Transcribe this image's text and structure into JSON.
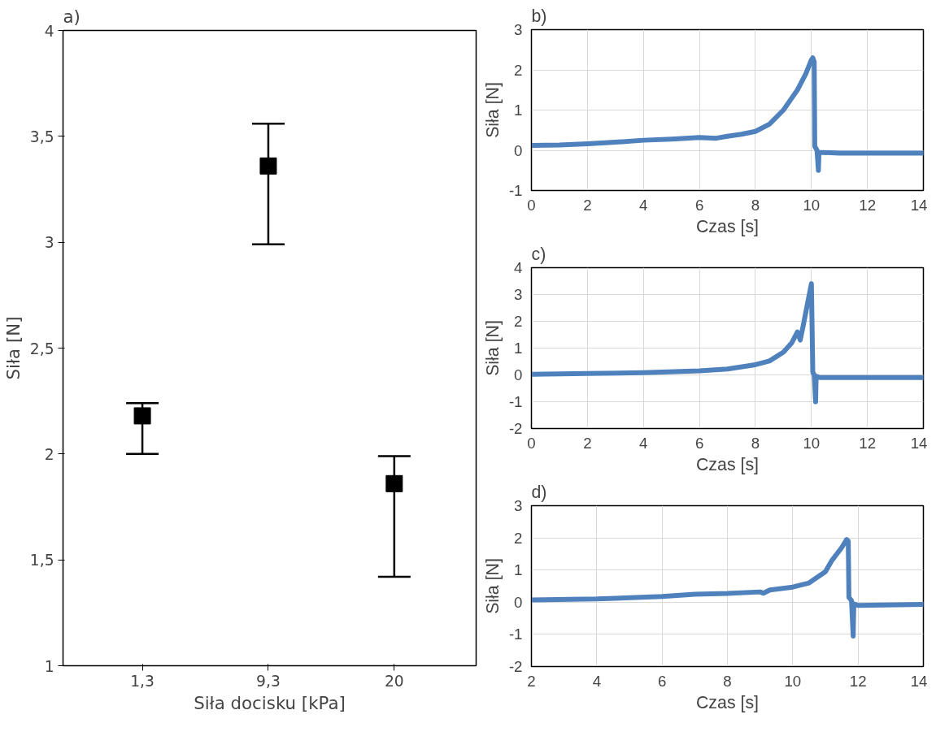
{
  "chart_data": [
    {
      "type": "scatter",
      "title": "a)",
      "xlabel": "Siła docisku [kPa]",
      "ylabel": "Siła [N]",
      "categories": [
        "1,3",
        "9,3",
        "20"
      ],
      "marker": "square",
      "series": [
        {
          "color": "#000000",
          "values": [
            2.18,
            3.36,
            1.86
          ],
          "errors": [
            [
              2.0,
              2.24
            ],
            [
              2.99,
              3.56
            ],
            [
              1.42,
              1.99
            ]
          ]
        }
      ],
      "ylim": [
        1,
        4
      ],
      "yticks": [
        1,
        {
          "value": 1.5,
          "label": "1,5"
        },
        2,
        {
          "value": 2.5,
          "label": "2,5"
        },
        3,
        {
          "value": 3.5,
          "label": "3,5"
        },
        4
      ]
    },
    {
      "type": "line",
      "title": "b)",
      "xlabel": "Czas [s]",
      "ylabel": "Siła [N]",
      "grid": true,
      "xlim": [
        0,
        14
      ],
      "xticks": [
        0,
        2,
        4,
        6,
        8,
        10,
        12,
        14
      ],
      "ylim": [
        -1,
        3
      ],
      "yticks": [
        -1,
        0,
        1,
        2,
        3
      ],
      "series": [
        {
          "color": "#4f81bd",
          "x": [
            0,
            1,
            2,
            3,
            4,
            5,
            6,
            6.6,
            7,
            7.5,
            8,
            8.5,
            9,
            9.3,
            9.5,
            9.8,
            10.0,
            10.05,
            10.1,
            10.12,
            10.2,
            10.25,
            10.27,
            11,
            12,
            14
          ],
          "values": [
            0.12,
            0.13,
            0.16,
            0.2,
            0.25,
            0.28,
            0.32,
            0.3,
            0.35,
            0.4,
            0.47,
            0.65,
            1.0,
            1.3,
            1.5,
            1.9,
            2.25,
            2.3,
            2.2,
            0.1,
            0.0,
            -0.5,
            -0.05,
            -0.07,
            -0.07,
            -0.07
          ]
        }
      ]
    },
    {
      "type": "line",
      "title": "c)",
      "xlabel": "Czas [s]",
      "ylabel": "Siła [N]",
      "grid": true,
      "xlim": [
        0,
        14
      ],
      "xticks": [
        0,
        2,
        4,
        6,
        8,
        10,
        12,
        14
      ],
      "ylim": [
        -2,
        4
      ],
      "yticks": [
        -2,
        -1,
        0,
        1,
        2,
        3,
        4
      ],
      "series": [
        {
          "color": "#4f81bd",
          "x": [
            0,
            2,
            4,
            6,
            7,
            8,
            8.5,
            9,
            9.3,
            9.5,
            9.6,
            9.7,
            9.85,
            10.0,
            10.05,
            10.1,
            10.15,
            10.17,
            10.3,
            12,
            14
          ],
          "values": [
            0.02,
            0.05,
            0.08,
            0.15,
            0.22,
            0.38,
            0.52,
            0.85,
            1.2,
            1.6,
            1.3,
            1.8,
            2.6,
            3.4,
            0.1,
            0.0,
            -1.0,
            -0.05,
            -0.1,
            -0.1,
            -0.1
          ]
        }
      ]
    },
    {
      "type": "line",
      "title": "d)",
      "xlabel": "Czas [s]",
      "ylabel": "Siła [N]",
      "grid": true,
      "xlim": [
        2,
        14
      ],
      "xticks": [
        2,
        4,
        6,
        8,
        10,
        12,
        14
      ],
      "ylim": [
        -2,
        3
      ],
      "yticks": [
        -2,
        -1,
        0,
        1,
        2,
        3
      ],
      "series": [
        {
          "color": "#4f81bd",
          "x": [
            2,
            4,
            6,
            7,
            8,
            9,
            9.1,
            9.3,
            10,
            10.5,
            11,
            11.2,
            11.5,
            11.65,
            11.7,
            11.72,
            11.8,
            11.85,
            11.87,
            12,
            14
          ],
          "values": [
            0.07,
            0.1,
            0.18,
            0.25,
            0.27,
            0.32,
            0.28,
            0.38,
            0.47,
            0.6,
            0.95,
            1.3,
            1.7,
            1.95,
            1.9,
            0.15,
            0.05,
            -1.05,
            -0.05,
            -0.1,
            -0.07
          ]
        }
      ]
    }
  ]
}
